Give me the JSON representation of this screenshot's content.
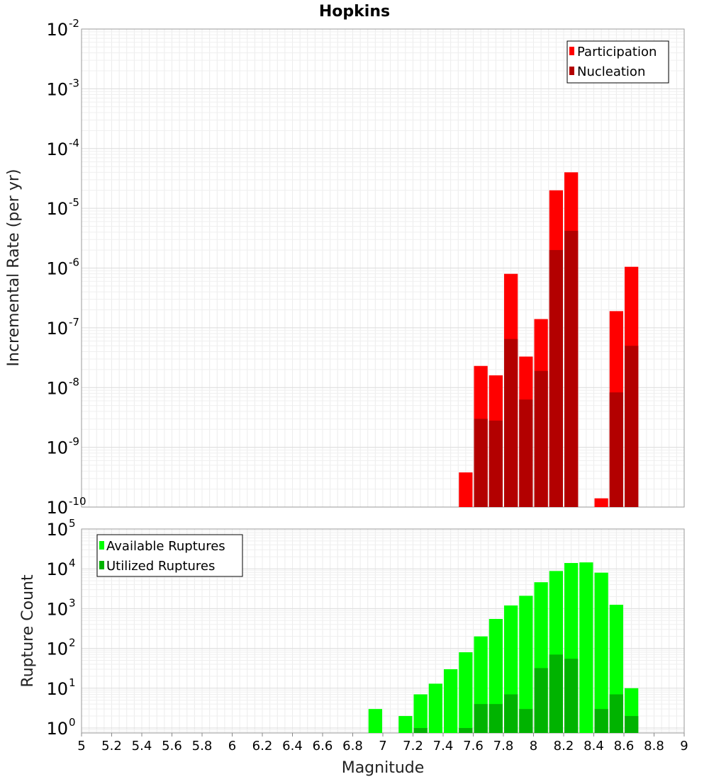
{
  "title": "Hopkins",
  "chart_data": [
    {
      "type": "bar",
      "scale": "log",
      "ylabel": "Incremental Rate (per yr)",
      "ylim": [
        1e-10,
        0.01
      ],
      "ytick_exponents": [
        "-10",
        "-9",
        "-8",
        "-7",
        "-6",
        "-5",
        "-4",
        "-3",
        "-2"
      ],
      "xlim": [
        5,
        9
      ],
      "bin_width": 0.1,
      "legend_position": "top-right",
      "series": [
        {
          "name": "Participation",
          "color": "#ff0000",
          "x": [
            7.55,
            7.65,
            7.75,
            7.85,
            7.95,
            8.05,
            8.15,
            8.25,
            8.45,
            8.55,
            8.65
          ],
          "values": [
            3.8e-10,
            2.3e-08,
            1.6e-08,
            8e-07,
            3.3e-08,
            1.4e-07,
            2e-05,
            4e-05,
            1.4e-10,
            1.9e-07,
            1.05e-06
          ]
        },
        {
          "name": "Nucleation",
          "color": "#b30000",
          "x": [
            7.65,
            7.75,
            7.85,
            7.95,
            8.05,
            8.15,
            8.25,
            8.55,
            8.65
          ],
          "values": [
            3e-09,
            2.8e-09,
            6.5e-08,
            6.3e-09,
            1.9e-08,
            2e-06,
            4.2e-06,
            8.3e-09,
            5e-08
          ]
        }
      ]
    },
    {
      "type": "bar",
      "scale": "log",
      "ylabel": "Rupture Count",
      "ylim": [
        0.75,
        100000
      ],
      "ytick_exponents": [
        "0",
        "1",
        "2",
        "3",
        "4",
        "5"
      ],
      "xlim": [
        5,
        9
      ],
      "xlabel": "Magnitude",
      "xticks": [
        "5",
        "5.2",
        "5.4",
        "5.6",
        "5.8",
        "6",
        "6.2",
        "6.4",
        "6.6",
        "6.8",
        "7",
        "7.2",
        "7.4",
        "7.6",
        "7.8",
        "8",
        "8.2",
        "8.4",
        "8.6",
        "8.8",
        "9"
      ],
      "bin_width": 0.1,
      "legend_position": "top-left",
      "series": [
        {
          "name": "Available Ruptures",
          "color": "#00ff00",
          "x": [
            6.95,
            7.15,
            7.25,
            7.35,
            7.45,
            7.55,
            7.65,
            7.75,
            7.85,
            7.95,
            8.05,
            8.15,
            8.25,
            8.35,
            8.45,
            8.55,
            8.65
          ],
          "values": [
            3,
            2,
            7,
            13,
            30,
            80,
            200,
            550,
            1200,
            2100,
            4600,
            8800,
            14000,
            14500,
            8000,
            1250,
            10
          ]
        },
        {
          "name": "Utilized Ruptures",
          "color": "#00b300",
          "x": [
            7.25,
            7.55,
            7.65,
            7.75,
            7.85,
            7.95,
            8.05,
            8.15,
            8.25,
            8.45,
            8.55,
            8.65
          ],
          "values": [
            1,
            1,
            4,
            4,
            7,
            3,
            32,
            70,
            55,
            3,
            7,
            2
          ]
        }
      ]
    }
  ]
}
